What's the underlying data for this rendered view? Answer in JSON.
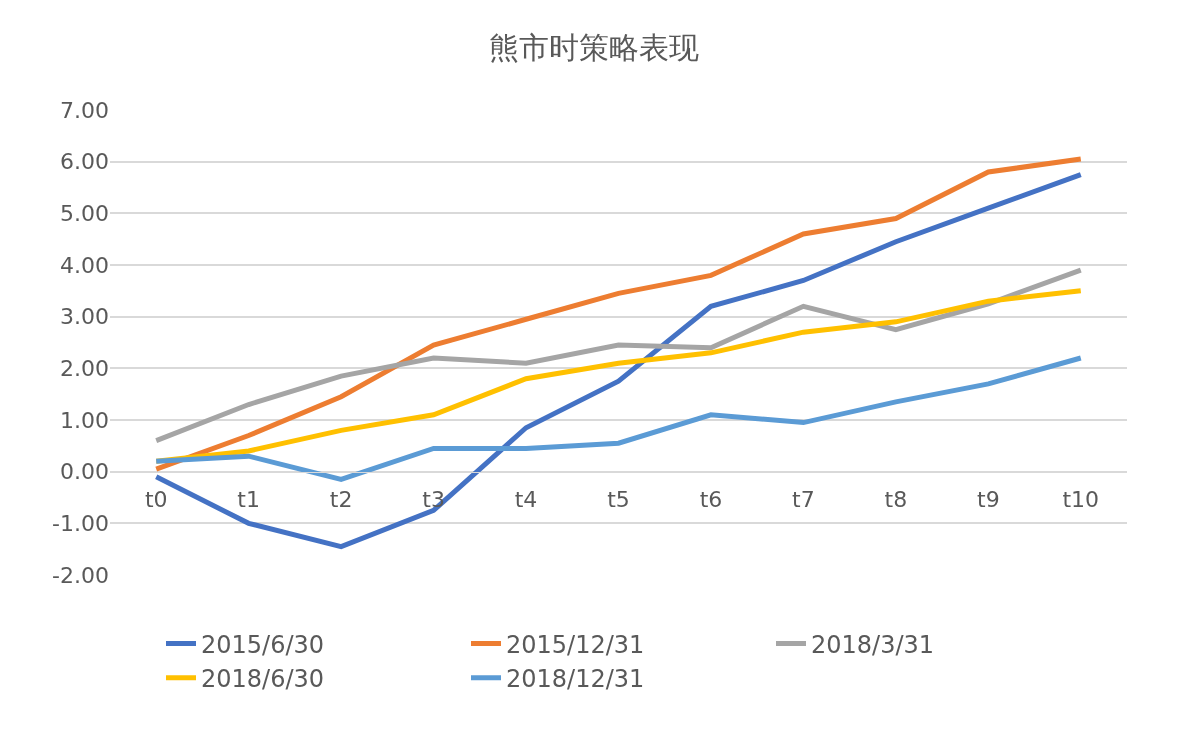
{
  "chart_data": {
    "type": "line",
    "title": "熊市时策略表现",
    "categories": [
      "t0",
      "t1",
      "t2",
      "t3",
      "t4",
      "t5",
      "t6",
      "t7",
      "t8",
      "t9",
      "t10"
    ],
    "series": [
      {
        "name": "2015/6/30",
        "color": "#4472c4",
        "values": [
          -0.1,
          -1.0,
          -1.45,
          -0.75,
          0.85,
          1.75,
          3.2,
          3.7,
          4.45,
          5.1,
          5.75
        ]
      },
      {
        "name": "2015/12/31",
        "color": "#ed7d31",
        "values": [
          0.05,
          0.7,
          1.45,
          2.45,
          2.95,
          3.45,
          3.8,
          4.6,
          4.9,
          5.8,
          6.05
        ]
      },
      {
        "name": "2018/3/31",
        "color": "#a5a5a5",
        "values": [
          0.6,
          1.3,
          1.85,
          2.2,
          2.1,
          2.45,
          2.4,
          3.2,
          2.75,
          3.25,
          3.9
        ]
      },
      {
        "name": "2018/6/30",
        "color": "#ffc000",
        "values": [
          0.2,
          0.4,
          0.8,
          1.1,
          1.8,
          2.1,
          2.3,
          2.7,
          2.9,
          3.3,
          3.5
        ]
      },
      {
        "name": "2018/12/31",
        "color": "#5b9bd5",
        "values": [
          0.2,
          0.3,
          -0.15,
          0.45,
          0.45,
          0.55,
          1.1,
          0.95,
          1.35,
          1.7,
          2.2
        ]
      }
    ],
    "ylim": [
      -2,
      7
    ],
    "yticks": [
      {
        "value": -2,
        "label": "-2.00"
      },
      {
        "value": -1,
        "label": "-1.00"
      },
      {
        "value": 0,
        "label": "0.00"
      },
      {
        "value": 1,
        "label": "1.00"
      },
      {
        "value": 2,
        "label": "2.00"
      },
      {
        "value": 3,
        "label": "3.00"
      },
      {
        "value": 4,
        "label": "4.00"
      },
      {
        "value": 5,
        "label": "5.00"
      },
      {
        "value": 6,
        "label": "6.00"
      },
      {
        "value": 7,
        "label": "7.00"
      }
    ],
    "grid": "y",
    "legend": "bottom",
    "marker": "none",
    "line_style": "solid"
  }
}
